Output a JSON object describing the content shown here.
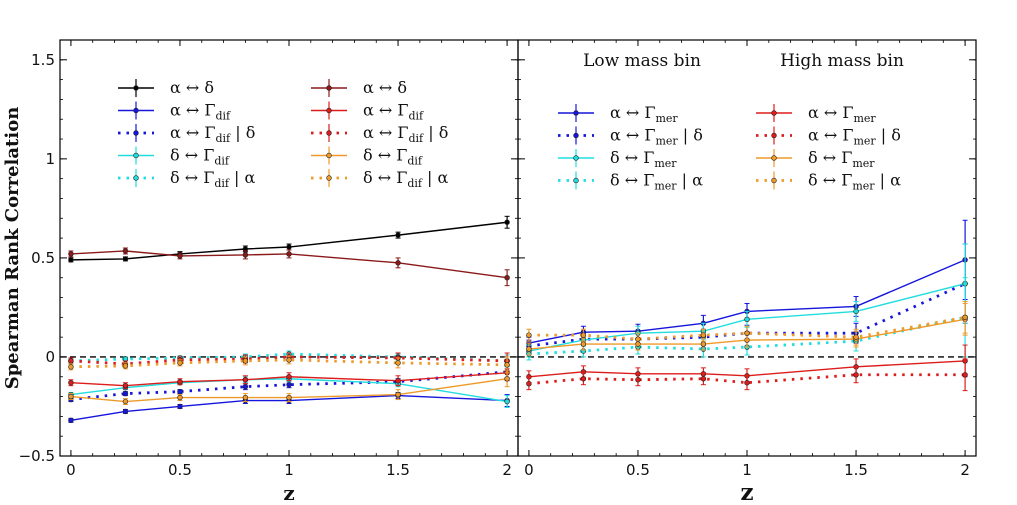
{
  "chart_data": [
    {
      "type": "line",
      "panel": "left",
      "ylabel": "Spearman Rank Correlation",
      "xlabel": "z",
      "xlim": [
        -0.05,
        2.05
      ],
      "ylim": [
        -0.5,
        1.6
      ],
      "xticks": [
        0,
        0.5,
        1,
        1.5,
        2
      ],
      "xtick_labels": [
        "0",
        "0.5",
        "1",
        "1.5",
        "2"
      ],
      "yticks": [
        -0.5,
        0,
        0.5,
        1,
        1.5
      ],
      "ytick_labels": [
        "−0.5",
        "0",
        "0.5",
        "1",
        "1.5"
      ],
      "x": [
        0,
        0.25,
        0.5,
        0.8,
        1.0,
        1.5,
        2.0
      ],
      "zero_line": true,
      "legend_columns": [
        [
          {
            "label": "α ↔ δ",
            "sub": "",
            "tail": "",
            "color": "#000000",
            "style": "solid"
          },
          {
            "label": "α ↔  Γ",
            "sub": "dif",
            "tail": "",
            "color": "#1515dd",
            "style": "solid"
          },
          {
            "label": "α ↔ Γ",
            "sub": "dif",
            "tail": " | δ",
            "color": "#1515dd",
            "style": "dotted"
          },
          {
            "label": "δ ↔  Γ",
            "sub": "dif",
            "tail": "",
            "color": "#22dddd",
            "style": "solid"
          },
          {
            "label": "δ ↔ Γ",
            "sub": "dif",
            "tail": " | α",
            "color": "#22dddd",
            "style": "dotted"
          }
        ],
        [
          {
            "label": "α ↔ δ",
            "sub": "",
            "tail": "",
            "color": "#8b1a1a",
            "style": "solid"
          },
          {
            "label": "α ↔  Γ",
            "sub": "dif",
            "tail": "",
            "color": "#dd1c1c",
            "style": "solid"
          },
          {
            "label": "α ↔ Γ",
            "sub": "dif",
            "tail": " | δ",
            "color": "#dd1c1c",
            "style": "dotted"
          },
          {
            "label": "δ ↔  Γ",
            "sub": "dif",
            "tail": "",
            "color": "#ee9a2a",
            "style": "solid"
          },
          {
            "label": "δ ↔ Γ",
            "sub": "dif",
            "tail": " | α",
            "color": "#ee9a2a",
            "style": "dotted"
          }
        ]
      ],
      "series": [
        {
          "name": "α ↔ δ (low)",
          "color": "#000000",
          "style": "solid",
          "values": [
            0.49,
            0.495,
            0.52,
            0.545,
            0.555,
            0.615,
            0.68
          ],
          "err": [
            0.01,
            0.01,
            0.012,
            0.015,
            0.015,
            0.015,
            0.03
          ]
        },
        {
          "name": "α ↔ δ (high)",
          "color": "#8b1a1a",
          "style": "solid",
          "values": [
            0.52,
            0.535,
            0.51,
            0.515,
            0.52,
            0.475,
            0.4
          ],
          "err": [
            0.015,
            0.015,
            0.015,
            0.02,
            0.02,
            0.025,
            0.04
          ]
        },
        {
          "name": "α ↔ Γdif (low)",
          "color": "#1515dd",
          "style": "solid",
          "values": [
            -0.32,
            -0.275,
            -0.25,
            -0.22,
            -0.22,
            -0.195,
            -0.22
          ],
          "err": [
            0.01,
            0.01,
            0.01,
            0.015,
            0.015,
            0.015,
            0.03
          ]
        },
        {
          "name": "α ↔ Γdif | δ (low)",
          "color": "#1515dd",
          "style": "dotted",
          "values": [
            -0.215,
            -0.185,
            -0.175,
            -0.15,
            -0.14,
            -0.125,
            -0.075
          ],
          "err": [
            0.01,
            0.01,
            0.01,
            0.015,
            0.015,
            0.015,
            0.03
          ]
        },
        {
          "name": "δ ↔ Γdif (low)",
          "color": "#22dddd",
          "style": "solid",
          "values": [
            -0.19,
            -0.155,
            -0.13,
            -0.115,
            -0.11,
            -0.135,
            -0.225
          ],
          "err": [
            0.01,
            0.01,
            0.01,
            0.015,
            0.015,
            0.015,
            0.03
          ]
        },
        {
          "name": "δ ↔ Γdif | α (low)",
          "color": "#22dddd",
          "style": "dotted",
          "values": [
            -0.02,
            -0.01,
            -0.005,
            0.0,
            0.015,
            0.0,
            -0.02
          ],
          "err": [
            0.01,
            0.01,
            0.01,
            0.015,
            0.015,
            0.015,
            0.03
          ]
        },
        {
          "name": "α ↔ Γdif (high)",
          "color": "#dd1c1c",
          "style": "solid",
          "values": [
            -0.13,
            -0.145,
            -0.125,
            -0.115,
            -0.1,
            -0.12,
            -0.08
          ],
          "err": [
            0.015,
            0.015,
            0.015,
            0.02,
            0.02,
            0.025,
            0.04
          ]
        },
        {
          "name": "α ↔ Γdif | δ (high)",
          "color": "#dd1c1c",
          "style": "dotted",
          "values": [
            -0.02,
            -0.035,
            -0.015,
            -0.01,
            0.0,
            -0.005,
            -0.02
          ],
          "err": [
            0.015,
            0.015,
            0.015,
            0.02,
            0.02,
            0.025,
            0.04
          ]
        },
        {
          "name": "δ ↔ Γdif (high)",
          "color": "#ee9a2a",
          "style": "solid",
          "values": [
            -0.2,
            -0.225,
            -0.205,
            -0.205,
            -0.205,
            -0.19,
            -0.11
          ],
          "err": [
            0.015,
            0.015,
            0.015,
            0.02,
            0.02,
            0.025,
            0.04
          ]
        },
        {
          "name": "δ ↔ Γdif | α (high)",
          "color": "#ee9a2a",
          "style": "dotted",
          "values": [
            -0.05,
            -0.045,
            -0.03,
            -0.02,
            -0.015,
            -0.03,
            -0.04
          ],
          "err": [
            0.015,
            0.015,
            0.015,
            0.02,
            0.02,
            0.025,
            0.04
          ]
        }
      ]
    },
    {
      "type": "line",
      "panel": "right",
      "xlabel": "z",
      "xlim": [
        -0.05,
        2.05
      ],
      "ylim": [
        -0.5,
        1.6
      ],
      "xticks": [
        0,
        0.5,
        1,
        1.5,
        2
      ],
      "xtick_labels": [
        "0",
        "0.5",
        "1",
        "1.5",
        "2"
      ],
      "x": [
        0,
        0.25,
        0.5,
        0.8,
        1.0,
        1.5,
        2.0
      ],
      "zero_line": true,
      "bin_titles": [
        "Low mass bin",
        "High mass bin"
      ],
      "legend_columns": [
        [
          {
            "label": "α ↔  Γ",
            "sub": "mer",
            "tail": "",
            "color": "#1515dd",
            "style": "solid"
          },
          {
            "label": "α ↔  Γ",
            "sub": "mer",
            "tail": " | δ",
            "color": "#1515dd",
            "style": "dotted"
          },
          {
            "label": "δ ↔  Γ",
            "sub": "mer",
            "tail": "",
            "color": "#22dddd",
            "style": "solid"
          },
          {
            "label": "δ ↔  Γ",
            "sub": "mer",
            "tail": " | α",
            "color": "#22dddd",
            "style": "dotted"
          }
        ],
        [
          {
            "label": "α ↔  Γ",
            "sub": "mer",
            "tail": "",
            "color": "#dd1c1c",
            "style": "solid"
          },
          {
            "label": "α ↔  Γ",
            "sub": "mer",
            "tail": " | δ",
            "color": "#dd1c1c",
            "style": "dotted"
          },
          {
            "label": "δ ↔  Γ",
            "sub": "mer",
            "tail": "",
            "color": "#ee9a2a",
            "style": "solid"
          },
          {
            "label": "δ ↔  Γ",
            "sub": "mer",
            "tail": " | α",
            "color": "#ee9a2a",
            "style": "dotted"
          }
        ]
      ],
      "series": [
        {
          "name": "α ↔ Γmer (low)",
          "color": "#1515dd",
          "style": "solid",
          "values": [
            0.07,
            0.125,
            0.13,
            0.17,
            0.23,
            0.255,
            0.49
          ],
          "err": [
            0.03,
            0.03,
            0.035,
            0.04,
            0.04,
            0.05,
            0.2
          ]
        },
        {
          "name": "α ↔ Γmer | δ (low)",
          "color": "#1515dd",
          "style": "dotted",
          "values": [
            0.055,
            0.09,
            0.09,
            0.1,
            0.12,
            0.12,
            0.37
          ],
          "err": [
            0.03,
            0.03,
            0.035,
            0.04,
            0.04,
            0.05,
            0.2
          ]
        },
        {
          "name": "δ ↔ Γmer (low)",
          "color": "#22dddd",
          "style": "solid",
          "values": [
            0.03,
            0.085,
            0.12,
            0.13,
            0.19,
            0.23,
            0.37
          ],
          "err": [
            0.03,
            0.03,
            0.035,
            0.04,
            0.04,
            0.05,
            0.2
          ]
        },
        {
          "name": "δ ↔ Γmer | α (low)",
          "color": "#22dddd",
          "style": "dotted",
          "values": [
            0.015,
            0.03,
            0.05,
            0.04,
            0.05,
            0.08,
            0.2
          ],
          "err": [
            0.03,
            0.03,
            0.035,
            0.04,
            0.04,
            0.05,
            0.2
          ]
        },
        {
          "name": "α ↔ Γmer (high)",
          "color": "#dd1c1c",
          "style": "solid",
          "values": [
            -0.1,
            -0.075,
            -0.085,
            -0.085,
            -0.095,
            -0.05,
            -0.02
          ],
          "err": [
            0.03,
            0.03,
            0.03,
            0.03,
            0.035,
            0.04,
            0.08
          ]
        },
        {
          "name": "α ↔ Γmer | δ (high)",
          "color": "#dd1c1c",
          "style": "dotted",
          "values": [
            -0.135,
            -0.11,
            -0.115,
            -0.11,
            -0.13,
            -0.09,
            -0.09
          ],
          "err": [
            0.03,
            0.03,
            0.03,
            0.03,
            0.035,
            0.04,
            0.08
          ]
        },
        {
          "name": "δ ↔ Γmer (high)",
          "color": "#ee9a2a",
          "style": "solid",
          "values": [
            0.04,
            0.065,
            0.065,
            0.065,
            0.085,
            0.09,
            0.19
          ],
          "err": [
            0.03,
            0.03,
            0.03,
            0.03,
            0.035,
            0.04,
            0.08
          ]
        },
        {
          "name": "δ ↔ Γmer | α (high)",
          "color": "#ee9a2a",
          "style": "dotted",
          "values": [
            0.11,
            0.11,
            0.09,
            0.11,
            0.12,
            0.1,
            0.2
          ],
          "err": [
            0.03,
            0.03,
            0.03,
            0.03,
            0.035,
            0.04,
            0.08
          ]
        }
      ]
    }
  ]
}
